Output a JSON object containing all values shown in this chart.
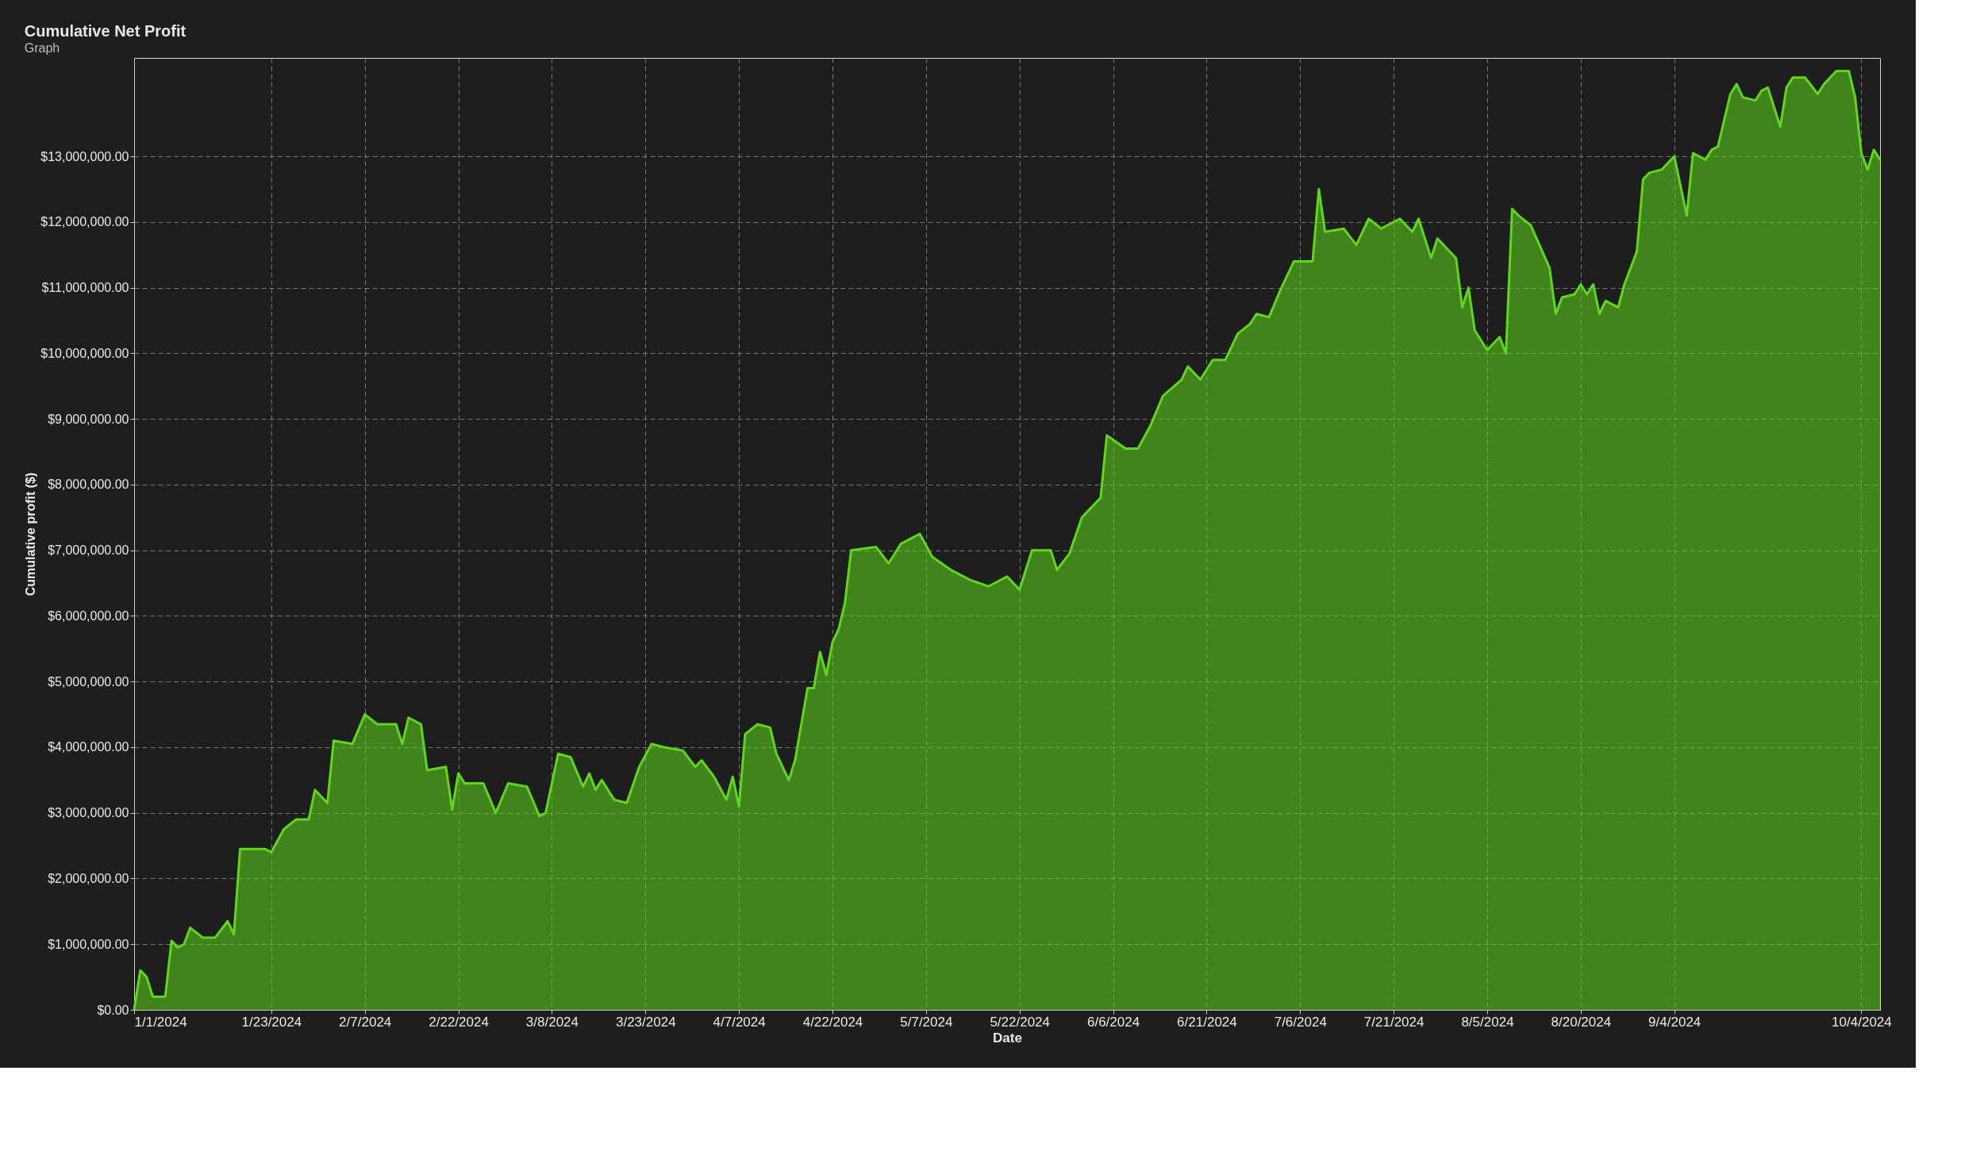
{
  "chart_data": {
    "type": "area",
    "title": "Cumulative Net Profit",
    "annotations": [
      "Graph"
    ],
    "xlabel": "Date",
    "ylabel": "Cumulative profit ($)",
    "x": [
      "2024-01-01",
      "2024-01-02",
      "2024-01-03",
      "2024-01-04",
      "2024-01-06",
      "2024-01-07",
      "2024-01-08",
      "2024-01-09",
      "2024-01-10",
      "2024-01-12",
      "2024-01-14",
      "2024-01-16",
      "2024-01-17",
      "2024-01-18",
      "2024-01-22",
      "2024-01-23",
      "2024-01-25",
      "2024-01-27",
      "2024-01-29",
      "2024-01-30",
      "2024-02-01",
      "2024-02-02",
      "2024-02-05",
      "2024-02-07",
      "2024-02-09",
      "2024-02-12",
      "2024-02-13",
      "2024-02-14",
      "2024-02-16",
      "2024-02-17",
      "2024-02-20",
      "2024-02-21",
      "2024-02-22",
      "2024-02-23",
      "2024-02-26",
      "2024-02-28",
      "2024-03-01",
      "2024-03-04",
      "2024-03-06",
      "2024-03-07",
      "2024-03-09",
      "2024-03-11",
      "2024-03-13",
      "2024-03-14",
      "2024-03-15",
      "2024-03-16",
      "2024-03-18",
      "2024-03-20",
      "2024-03-22",
      "2024-03-24",
      "2024-03-26",
      "2024-03-29",
      "2024-03-31",
      "2024-04-01",
      "2024-04-03",
      "2024-04-05",
      "2024-04-06",
      "2024-04-07",
      "2024-04-08",
      "2024-04-10",
      "2024-04-12",
      "2024-04-13",
      "2024-04-15",
      "2024-04-16",
      "2024-04-18",
      "2024-04-19",
      "2024-04-20",
      "2024-04-21",
      "2024-04-22",
      "2024-04-23",
      "2024-04-24",
      "2024-04-25",
      "2024-04-29",
      "2024-05-01",
      "2024-05-03",
      "2024-05-06",
      "2024-05-08",
      "2024-05-11",
      "2024-05-14",
      "2024-05-17",
      "2024-05-20",
      "2024-05-22",
      "2024-05-24",
      "2024-05-27",
      "2024-05-28",
      "2024-05-30",
      "2024-06-01",
      "2024-06-04",
      "2024-06-05",
      "2024-06-08",
      "2024-06-10",
      "2024-06-12",
      "2024-06-14",
      "2024-06-17",
      "2024-06-18",
      "2024-06-20",
      "2024-06-22",
      "2024-06-24",
      "2024-06-26",
      "2024-06-28",
      "2024-06-29",
      "2024-07-01",
      "2024-07-03",
      "2024-07-05",
      "2024-07-08",
      "2024-07-09",
      "2024-07-10",
      "2024-07-13",
      "2024-07-15",
      "2024-07-17",
      "2024-07-19",
      "2024-07-22",
      "2024-07-24",
      "2024-07-25",
      "2024-07-27",
      "2024-07-28",
      "2024-07-31",
      "2024-08-01",
      "2024-08-02",
      "2024-08-03",
      "2024-08-05",
      "2024-08-07",
      "2024-08-08",
      "2024-08-09",
      "2024-08-10",
      "2024-08-12",
      "2024-08-15",
      "2024-08-16",
      "2024-08-17",
      "2024-08-19",
      "2024-08-20",
      "2024-08-21",
      "2024-08-22",
      "2024-08-23",
      "2024-08-24",
      "2024-08-26",
      "2024-08-27",
      "2024-08-29",
      "2024-08-30",
      "2024-08-31",
      "2024-09-02",
      "2024-09-04",
      "2024-09-06",
      "2024-09-07",
      "2024-09-09",
      "2024-09-10",
      "2024-09-11",
      "2024-09-13",
      "2024-09-14",
      "2024-09-15",
      "2024-09-17",
      "2024-09-18",
      "2024-09-19",
      "2024-09-21",
      "2024-09-22",
      "2024-09-23",
      "2024-09-25",
      "2024-09-27",
      "2024-09-28",
      "2024-09-30",
      "2024-10-02",
      "2024-10-03",
      "2024-10-04",
      "2024-10-05",
      "2024-10-06",
      "2024-10-07"
    ],
    "series": [
      {
        "color": "#5fd81c",
        "values": [
          0,
          600000,
          500000,
          200000,
          200000,
          1050000,
          950000,
          1000000,
          1250000,
          1100000,
          1100000,
          1350000,
          1150000,
          2450000,
          2450000,
          2400000,
          2750000,
          2900000,
          2900000,
          3350000,
          3150000,
          4100000,
          4050000,
          4500000,
          4350000,
          4350000,
          4050000,
          4450000,
          4350000,
          3650000,
          3700000,
          3050000,
          3600000,
          3450000,
          3450000,
          3000000,
          3450000,
          3400000,
          2950000,
          3000000,
          3900000,
          3850000,
          3400000,
          3600000,
          3350000,
          3500000,
          3200000,
          3150000,
          3700000,
          4050000,
          4000000,
          3950000,
          3700000,
          3800000,
          3550000,
          3200000,
          3550000,
          3100000,
          4200000,
          4350000,
          4300000,
          3900000,
          3500000,
          3800000,
          4900000,
          4900000,
          5450000,
          5100000,
          5600000,
          5800000,
          6200000,
          7000000,
          7050000,
          6800000,
          7100000,
          7250000,
          6900000,
          6700000,
          6550000,
          6450000,
          6600000,
          6400000,
          7000000,
          7000000,
          6700000,
          6950000,
          7500000,
          7800000,
          8750000,
          8550000,
          8550000,
          8900000,
          9350000,
          9600000,
          9800000,
          9600000,
          9900000,
          9900000,
          10300000,
          10450000,
          10600000,
          10550000,
          11000000,
          11400000,
          11400000,
          12500000,
          11850000,
          11900000,
          11650000,
          12050000,
          11900000,
          12050000,
          11850000,
          12050000,
          11450000,
          11750000,
          11450000,
          10700000,
          11000000,
          10350000,
          10050000,
          10250000,
          10000000,
          12200000,
          12100000,
          11950000,
          11300000,
          10600000,
          10850000,
          10900000,
          11050000,
          10900000,
          11050000,
          10600000,
          10800000,
          10700000,
          11050000,
          11550000,
          12650000,
          12750000,
          12800000,
          13000000,
          12100000,
          13050000,
          12950000,
          13100000,
          13150000,
          13950000,
          14100000,
          13900000,
          13850000,
          14000000,
          14050000,
          13450000,
          14050000,
          14200000,
          14200000,
          13950000,
          14100000,
          14300000,
          14300000,
          13900000,
          13050000,
          12800000,
          13100000,
          12950000
        ]
      }
    ],
    "xlim": [
      "2024-01-01",
      "2024-10-07"
    ],
    "xticks": [
      {
        "value": "2024-01-01",
        "label": "1/1/2024"
      },
      {
        "value": "2024-01-23",
        "label": "1/23/2024"
      },
      {
        "value": "2024-02-07",
        "label": "2/7/2024"
      },
      {
        "value": "2024-02-22",
        "label": "2/22/2024"
      },
      {
        "value": "2024-03-08",
        "label": "3/8/2024"
      },
      {
        "value": "2024-03-23",
        "label": "3/23/2024"
      },
      {
        "value": "2024-04-07",
        "label": "4/7/2024"
      },
      {
        "value": "2024-04-22",
        "label": "4/22/2024"
      },
      {
        "value": "2024-05-07",
        "label": "5/7/2024"
      },
      {
        "value": "2024-05-22",
        "label": "5/22/2024"
      },
      {
        "value": "2024-06-06",
        "label": "6/6/2024"
      },
      {
        "value": "2024-06-21",
        "label": "6/21/2024"
      },
      {
        "value": "2024-07-06",
        "label": "7/6/2024"
      },
      {
        "value": "2024-07-21",
        "label": "7/21/2024"
      },
      {
        "value": "2024-08-05",
        "label": "8/5/2024"
      },
      {
        "value": "2024-08-20",
        "label": "8/20/2024"
      },
      {
        "value": "2024-09-04",
        "label": "9/4/2024"
      },
      {
        "value": "2024-10-04",
        "label": "10/4/2024"
      }
    ],
    "ylim": [
      0,
      14500000
    ],
    "yticks": [
      {
        "value": 0,
        "label": "$0.00"
      },
      {
        "value": 1000000,
        "label": "$1,000,000.00"
      },
      {
        "value": 2000000,
        "label": "$2,000,000.00"
      },
      {
        "value": 3000000,
        "label": "$3,000,000.00"
      },
      {
        "value": 4000000,
        "label": "$4,000,000.00"
      },
      {
        "value": 5000000,
        "label": "$5,000,000.00"
      },
      {
        "value": 6000000,
        "label": "$6,000,000.00"
      },
      {
        "value": 7000000,
        "label": "$7,000,000.00"
      },
      {
        "value": 8000000,
        "label": "$8,000,000.00"
      },
      {
        "value": 9000000,
        "label": "$9,000,000.00"
      },
      {
        "value": 10000000,
        "label": "$10,000,000.00"
      },
      {
        "value": 11000000,
        "label": "$11,000,000.00"
      },
      {
        "value": 12000000,
        "label": "$12,000,000.00"
      },
      {
        "value": 13000000,
        "label": "$13,000,000.00"
      }
    ],
    "grid": true
  }
}
